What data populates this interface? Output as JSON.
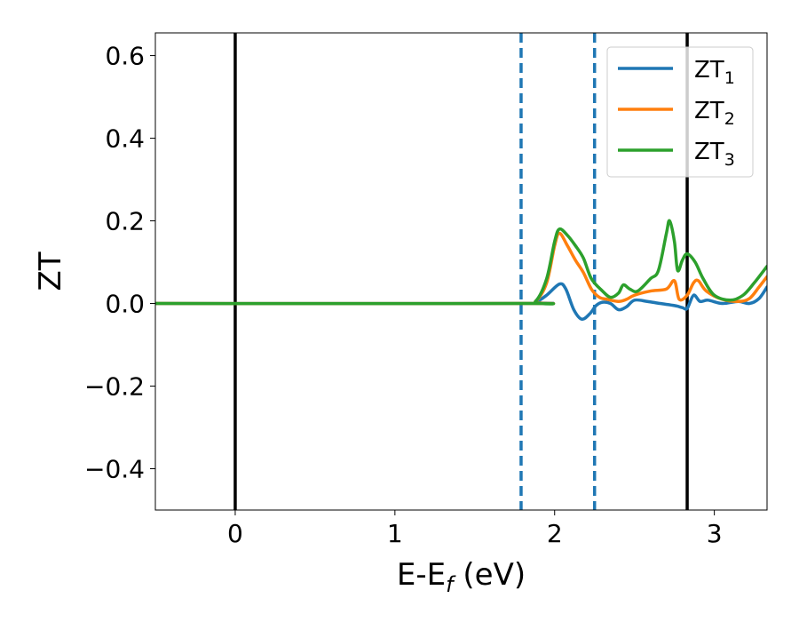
{
  "chart_data": {
    "type": "line",
    "xlabel": {
      "main": "E-E",
      "sub": "f",
      "suffix": " (eV)"
    },
    "ylabel": "ZT",
    "xlim": [
      -0.5,
      3.33
    ],
    "ylim": [
      -0.5,
      0.655
    ],
    "xticks": [
      {
        "value": 0,
        "label": "0"
      },
      {
        "value": 1,
        "label": "1"
      },
      {
        "value": 2,
        "label": "2"
      },
      {
        "value": 3,
        "label": "3"
      }
    ],
    "yticks": [
      {
        "value": -0.4,
        "label": "−0.4"
      },
      {
        "value": -0.2,
        "label": "−0.2"
      },
      {
        "value": 0.0,
        "label": "0.0"
      },
      {
        "value": 0.2,
        "label": "0.2"
      },
      {
        "value": 0.4,
        "label": "0.4"
      },
      {
        "value": 0.6,
        "label": "0.6"
      }
    ],
    "grid": false,
    "legend": {
      "placement": "top-right",
      "entries": [
        {
          "main": "ZT",
          "sub": "1"
        },
        {
          "main": "ZT",
          "sub": "2"
        },
        {
          "main": "ZT",
          "sub": "3"
        }
      ]
    },
    "vlines": [
      {
        "x": 0.0,
        "style": "solid",
        "color": "#000000"
      },
      {
        "x": 1.79,
        "style": "dashed",
        "color": "#1f77b4"
      },
      {
        "x": 2.25,
        "style": "dashed",
        "color": "#1f77b4"
      },
      {
        "x": 2.83,
        "style": "solid",
        "color": "#000000"
      }
    ],
    "series": [
      {
        "name": "ZT1",
        "color": "#1f77b4",
        "points": [
          [
            -0.5,
            0
          ],
          [
            1.8,
            0
          ],
          [
            1.88,
            0.003
          ],
          [
            1.95,
            0.02
          ],
          [
            2.03,
            0.047
          ],
          [
            2.07,
            0.035
          ],
          [
            2.12,
            -0.015
          ],
          [
            2.17,
            -0.038
          ],
          [
            2.22,
            -0.025
          ],
          [
            2.26,
            -0.005
          ],
          [
            2.3,
            0.003
          ],
          [
            2.35,
            0.0
          ],
          [
            2.4,
            -0.015
          ],
          [
            2.45,
            -0.008
          ],
          [
            2.5,
            0.008
          ],
          [
            2.58,
            0.005
          ],
          [
            2.66,
            0.0
          ],
          [
            2.75,
            -0.005
          ],
          [
            2.8,
            -0.01
          ],
          [
            2.83,
            -0.012
          ],
          [
            2.87,
            0.02
          ],
          [
            2.91,
            0.005
          ],
          [
            2.96,
            0.008
          ],
          [
            3.05,
            0.0
          ],
          [
            3.15,
            0.005
          ],
          [
            3.22,
            0.0
          ],
          [
            3.28,
            0.012
          ],
          [
            3.33,
            0.04
          ]
        ]
      },
      {
        "name": "ZT2",
        "color": "#ff7f0e",
        "points": [
          [
            -0.5,
            0
          ],
          [
            1.8,
            0
          ],
          [
            1.88,
            0.005
          ],
          [
            1.95,
            0.05
          ],
          [
            2.0,
            0.14
          ],
          [
            2.03,
            0.17
          ],
          [
            2.08,
            0.14
          ],
          [
            2.13,
            0.105
          ],
          [
            2.18,
            0.075
          ],
          [
            2.23,
            0.035
          ],
          [
            2.28,
            0.015
          ],
          [
            2.33,
            0.01
          ],
          [
            2.4,
            0.005
          ],
          [
            2.45,
            0.01
          ],
          [
            2.5,
            0.02
          ],
          [
            2.6,
            0.03
          ],
          [
            2.7,
            0.035
          ],
          [
            2.75,
            0.055
          ],
          [
            2.78,
            0.01
          ],
          [
            2.83,
            0.02
          ],
          [
            2.87,
            0.05
          ],
          [
            2.9,
            0.055
          ],
          [
            2.95,
            0.03
          ],
          [
            3.05,
            0.01
          ],
          [
            3.15,
            0.005
          ],
          [
            3.22,
            0.012
          ],
          [
            3.28,
            0.04
          ],
          [
            3.33,
            0.065
          ]
        ]
      },
      {
        "name": "ZT3",
        "color": "#2ca02c",
        "points": [
          [
            -0.5,
            0
          ],
          [
            1.8,
            0
          ],
          [
            1.88,
            0.005
          ],
          [
            1.95,
            0.06
          ],
          [
            2.0,
            0.15
          ],
          [
            2.03,
            0.18
          ],
          [
            2.08,
            0.165
          ],
          [
            2.13,
            0.14
          ],
          [
            2.18,
            0.11
          ],
          [
            2.23,
            0.06
          ],
          [
            2.3,
            0.03
          ],
          [
            2.35,
            0.015
          ],
          [
            2.4,
            0.025
          ],
          [
            2.43,
            0.045
          ],
          [
            2.47,
            0.035
          ],
          [
            2.52,
            0.03
          ],
          [
            2.6,
            0.06
          ],
          [
            2.65,
            0.08
          ],
          [
            2.7,
            0.17
          ],
          [
            2.72,
            0.2
          ],
          [
            2.75,
            0.15
          ],
          [
            2.77,
            0.08
          ],
          [
            2.8,
            0.105
          ],
          [
            2.83,
            0.12
          ],
          [
            2.88,
            0.1
          ],
          [
            2.93,
            0.06
          ],
          [
            3.0,
            0.02
          ],
          [
            3.1,
            0.008
          ],
          [
            3.18,
            0.02
          ],
          [
            3.25,
            0.05
          ],
          [
            3.33,
            0.09
          ]
        ]
      }
    ]
  }
}
